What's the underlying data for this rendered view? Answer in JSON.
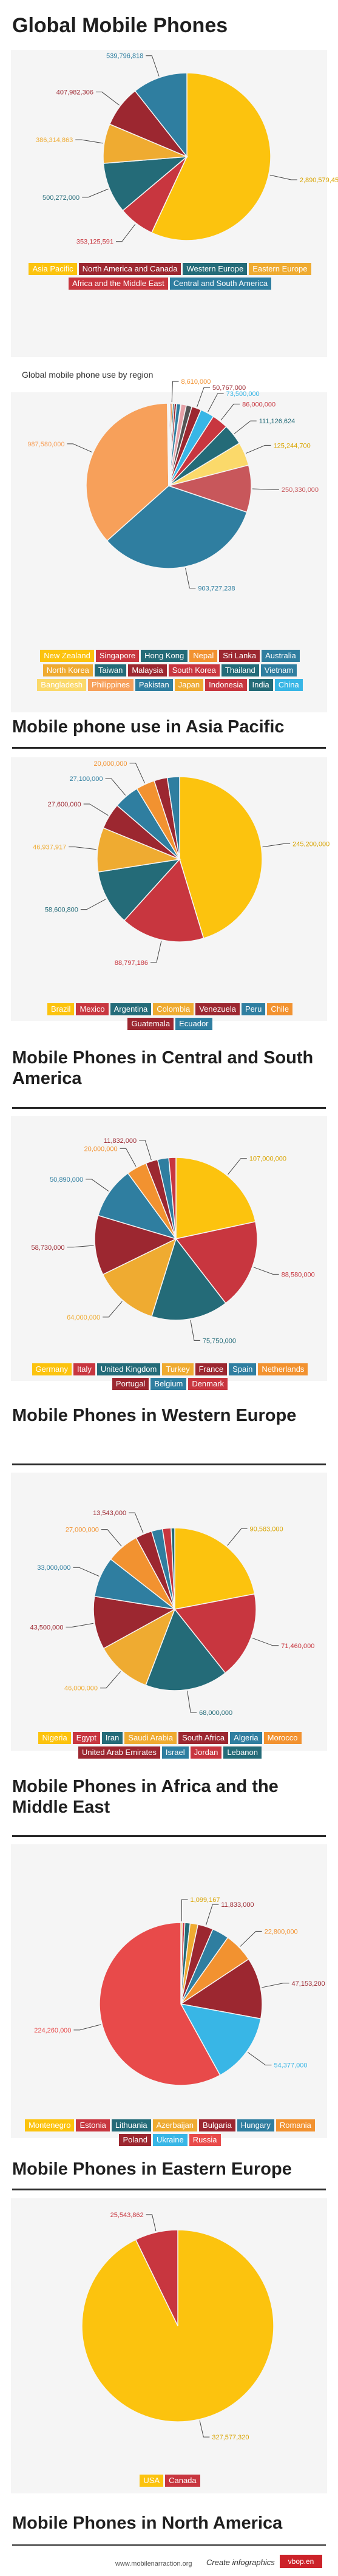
{
  "page": {
    "footer_url": "www.mobilenarraction.org",
    "footer_brand": "Create infographics",
    "footer_badge": "vbop.en"
  },
  "chart_data": [
    {
      "type": "pie",
      "title": "Global Mobile Phones",
      "subtitle": "",
      "series": [
        {
          "name": "Asia Pacific",
          "value": 2890579458,
          "label": "2,890,579,458",
          "color": "#fcc30e"
        },
        {
          "name": "Eastern Europe",
          "value": 353125591,
          "label": "353,125,591",
          "color": "#c8363f"
        },
        {
          "name": "Africa and the Middle East",
          "value": 500272000,
          "label": "500,272,000",
          "color": "#246b78"
        },
        {
          "name": "Western Europe",
          "value": 386314863,
          "label": "386,314,863",
          "color": "#efab31"
        },
        {
          "name": "North America and Canada",
          "value": 407982306,
          "label": "407,982,306",
          "color": "#9c2730"
        },
        {
          "name": "Central and South America",
          "value": 539796818,
          "label": "539,796,818",
          "color": "#2f7ea0"
        }
      ],
      "legend": [
        {
          "label": "Asia Pacific",
          "color": "#fcc30e"
        },
        {
          "label": "North America and Canada",
          "color": "#9c2730"
        },
        {
          "label": "Western Europe",
          "color": "#246b78"
        },
        {
          "label": "Eastern Europe",
          "color": "#efab31"
        },
        {
          "label": "Africa and the Middle East",
          "color": "#c8363f"
        },
        {
          "label": "Central and South America",
          "color": "#2f7ea0"
        }
      ]
    },
    {
      "type": "pie",
      "title": "",
      "subtitle": "Global mobile phone use by region",
      "series": [
        {
          "name": "New Zealand",
          "value": 5000000,
          "label": "",
          "color": "#fcc30e"
        },
        {
          "name": "Singapore",
          "value": 7000000,
          "label": "",
          "color": "#c8363f"
        },
        {
          "name": "Hong Kong",
          "value": 8610000,
          "label": "8,610,000",
          "color": "#f29230"
        },
        {
          "name": "Nepal",
          "value": 9000000,
          "label": "",
          "color": "#246b78"
        },
        {
          "name": "Sri Lanka",
          "value": 12000000,
          "label": "",
          "color": "#9c2730"
        },
        {
          "name": "Australia",
          "value": 22000000,
          "label": "",
          "color": "#2f7ea0"
        },
        {
          "name": "North Korea",
          "value": 2000000,
          "label": "",
          "color": "#efab31"
        },
        {
          "name": "Taiwan",
          "value": 28000000,
          "label": "",
          "color": "#e5a0a6"
        },
        {
          "name": "Malaysia",
          "value": 30000000,
          "label": "",
          "color": "#555555"
        },
        {
          "name": "South Korea",
          "value": 50767000,
          "label": "50,767,000",
          "color": "#9c2730"
        },
        {
          "name": "Thailand",
          "value": 73500000,
          "label": "73,500,000",
          "color": "#38b6e6"
        },
        {
          "name": "Vietnam",
          "value": 86000000,
          "label": "86,000,000",
          "color": "#c8363f"
        },
        {
          "name": "Bangladesh",
          "value": 111126624,
          "label": "111,126,624",
          "color": "#246b78"
        },
        {
          "name": "Philippines",
          "value": 125244700,
          "label": "125,244,700",
          "color": "#fbd96a"
        },
        {
          "name": "Pakistan",
          "value": 250330000,
          "label": "250,330,000",
          "color": "#c8575b"
        },
        {
          "name": "Indonesia",
          "value": 903727238,
          "label": "903,727,238",
          "color": "#2f7ea0"
        },
        {
          "name": "India",
          "value": 987580000,
          "label": "987,580,000",
          "color": "#f7a05a"
        },
        {
          "name": "Japan",
          "value": 4000000,
          "label": "",
          "color": "#efab31"
        },
        {
          "name": "China",
          "value": 3000000,
          "label": "",
          "color": "#2f7ea0"
        }
      ],
      "legend": [
        {
          "label": "New Zealand",
          "color": "#fcc30e"
        },
        {
          "label": "Singapore",
          "color": "#c8363f"
        },
        {
          "label": "Hong Kong",
          "color": "#246b78"
        },
        {
          "label": "Nepal",
          "color": "#f29230"
        },
        {
          "label": "Sri Lanka",
          "color": "#9c2730"
        },
        {
          "label": "Australia",
          "color": "#2f7ea0"
        },
        {
          "label": "North Korea",
          "color": "#efab31"
        },
        {
          "label": "Taiwan",
          "color": "#246b78"
        },
        {
          "label": "Malaysia",
          "color": "#9c2730"
        },
        {
          "label": "South Korea",
          "color": "#c8363f"
        },
        {
          "label": "Thailand",
          "color": "#246b78"
        },
        {
          "label": "Vietnam",
          "color": "#2f7ea0"
        },
        {
          "label": "Bangladesh",
          "color": "#fbd96a"
        },
        {
          "label": "Philippines",
          "color": "#f7a05a"
        },
        {
          "label": "Pakistan",
          "color": "#2f7ea0"
        },
        {
          "label": "Japan",
          "color": "#efab31"
        },
        {
          "label": "Indonesia",
          "color": "#c8363f"
        },
        {
          "label": "India",
          "color": "#246b78"
        },
        {
          "label": "China",
          "color": "#38b6e6"
        }
      ]
    },
    {
      "type": "pie",
      "title": "Mobile phone use in Asia Pacific",
      "subtitle": "",
      "series": [
        {
          "name": "Brazil",
          "value": 245200000,
          "label": "245,200,000",
          "color": "#fcc30e"
        },
        {
          "name": "Mexico",
          "value": 88797186,
          "label": "88,797,186",
          "color": "#c8363f"
        },
        {
          "name": "Argentina",
          "value": 58600800,
          "label": "58,600,800",
          "color": "#246b78"
        },
        {
          "name": "Colombia",
          "value": 46937917,
          "label": "46,937,917",
          "color": "#efab31"
        },
        {
          "name": "Venezuela",
          "value": 27600000,
          "label": "27,600,000",
          "color": "#9c2730"
        },
        {
          "name": "Peru",
          "value": 27100000,
          "label": "27,100,000",
          "color": "#2f7ea0"
        },
        {
          "name": "Chile",
          "value": 20000000,
          "label": "20,000,000",
          "color": "#f29230"
        },
        {
          "name": "Guatemala",
          "value": 14000000,
          "label": "",
          "color": "#9c2730"
        },
        {
          "name": "Ecuador",
          "value": 13000000,
          "label": "",
          "color": "#2f7ea0"
        }
      ],
      "legend": [
        {
          "label": "Brazil",
          "color": "#fcc30e"
        },
        {
          "label": "Mexico",
          "color": "#c8363f"
        },
        {
          "label": "Argentina",
          "color": "#246b78"
        },
        {
          "label": "Colombia",
          "color": "#efab31"
        },
        {
          "label": "Venezuela",
          "color": "#9c2730"
        },
        {
          "label": "Peru",
          "color": "#2f7ea0"
        },
        {
          "label": "Chile",
          "color": "#f29230"
        },
        {
          "label": "Guatemala",
          "color": "#9c2730"
        },
        {
          "label": "Ecuador",
          "color": "#2f7ea0"
        }
      ]
    },
    {
      "type": "pie",
      "title": "Mobile Phones in Central and South America",
      "subtitle": "",
      "series": [
        {
          "name": "Germany",
          "value": 107000000,
          "label": "107,000,000",
          "color": "#fcc30e"
        },
        {
          "name": "Italy",
          "value": 88580000,
          "label": "88,580,000",
          "color": "#c8363f"
        },
        {
          "name": "United Kingdom",
          "value": 75750000,
          "label": "75,750,000",
          "color": "#246b78"
        },
        {
          "name": "Turkey",
          "value": 64000000,
          "label": "64,000,000",
          "color": "#efab31"
        },
        {
          "name": "France",
          "value": 58730000,
          "label": "58,730,000",
          "color": "#9c2730"
        },
        {
          "name": "Spain",
          "value": 50890000,
          "label": "50,890,000",
          "color": "#2f7ea0"
        },
        {
          "name": "Netherlands",
          "value": 20000000,
          "label": "20,000,000",
          "color": "#f29230"
        },
        {
          "name": "Portugal",
          "value": 11832000,
          "label": "11,832,000",
          "color": "#9c2730"
        },
        {
          "name": "Belgium",
          "value": 11000000,
          "label": "",
          "color": "#2f7ea0"
        },
        {
          "name": "Denmark",
          "value": 7000000,
          "label": "",
          "color": "#c8363f"
        }
      ],
      "legend": [
        {
          "label": "Germany",
          "color": "#fcc30e"
        },
        {
          "label": "Italy",
          "color": "#c8363f"
        },
        {
          "label": "United Kingdom",
          "color": "#246b78"
        },
        {
          "label": "Turkey",
          "color": "#efab31"
        },
        {
          "label": "France",
          "color": "#9c2730"
        },
        {
          "label": "Spain",
          "color": "#2f7ea0"
        },
        {
          "label": "Netherlands",
          "color": "#f29230"
        },
        {
          "label": "Portugal",
          "color": "#9c2730"
        },
        {
          "label": "Belgium",
          "color": "#2f7ea0"
        },
        {
          "label": "Denmark",
          "color": "#c8363f"
        }
      ]
    },
    {
      "type": "pie",
      "title": "Mobile Phones in Western Europe",
      "subtitle": "",
      "series": [
        {
          "name": "Nigeria",
          "value": 90583000,
          "label": "90,583,000",
          "color": "#fcc30e"
        },
        {
          "name": "Egypt",
          "value": 71460000,
          "label": "71,460,000",
          "color": "#c8363f"
        },
        {
          "name": "Iran",
          "value": 68000000,
          "label": "68,000,000",
          "color": "#246b78"
        },
        {
          "name": "Saudi Arabia",
          "value": 46000000,
          "label": "46,000,000",
          "color": "#efab31"
        },
        {
          "name": "South Africa",
          "value": 43500000,
          "label": "43,500,000",
          "color": "#9c2730"
        },
        {
          "name": "Algeria",
          "value": 33000000,
          "label": "33,000,000",
          "color": "#2f7ea0"
        },
        {
          "name": "Morocco",
          "value": 27000000,
          "label": "27,000,000",
          "color": "#f29230"
        },
        {
          "name": "United Arab Emirates",
          "value": 13543000,
          "label": "13,543,000",
          "color": "#9c2730"
        },
        {
          "name": "Israel",
          "value": 9000000,
          "label": "",
          "color": "#2f7ea0"
        },
        {
          "name": "Jordan",
          "value": 7000000,
          "label": "",
          "color": "#c8363f"
        },
        {
          "name": "Lebanon",
          "value": 3000000,
          "label": "",
          "color": "#246b78"
        }
      ],
      "legend": [
        {
          "label": "Nigeria",
          "color": "#fcc30e"
        },
        {
          "label": "Egypt",
          "color": "#c8363f"
        },
        {
          "label": "Iran",
          "color": "#246b78"
        },
        {
          "label": "Saudi Arabia",
          "color": "#efab31"
        },
        {
          "label": "South Africa",
          "color": "#9c2730"
        },
        {
          "label": "Algeria",
          "color": "#2f7ea0"
        },
        {
          "label": "Morocco",
          "color": "#f29230"
        },
        {
          "label": "United Arab Emirates",
          "color": "#9c2730"
        },
        {
          "label": "Israel",
          "color": "#2f7ea0"
        },
        {
          "label": "Jordan",
          "color": "#c8363f"
        },
        {
          "label": "Lebanon",
          "color": "#246b78"
        }
      ]
    },
    {
      "type": "pie",
      "title": "Mobile Phones in Africa and the Middle East",
      "subtitle": "",
      "series": [
        {
          "name": "Montenegro",
          "value": 1099167,
          "label": "1,099,167",
          "color": "#fcc30e"
        },
        {
          "name": "Estonia",
          "value": 2000000,
          "label": "",
          "color": "#c8363f"
        },
        {
          "name": "Lithuania",
          "value": 4000000,
          "label": "",
          "color": "#246b78"
        },
        {
          "name": "Azerbaijan",
          "value": 6000000,
          "label": "",
          "color": "#efab31"
        },
        {
          "name": "Bulgaria",
          "value": 11833000,
          "label": "11,833,000",
          "color": "#9c2730"
        },
        {
          "name": "Hungary",
          "value": 13000000,
          "label": "",
          "color": "#2f7ea0"
        },
        {
          "name": "Romania",
          "value": 22800000,
          "label": "22,800,000",
          "color": "#f29230"
        },
        {
          "name": "Poland",
          "value": 47153200,
          "label": "47,153,200",
          "color": "#9c2730"
        },
        {
          "name": "Ukraine",
          "value": 54377000,
          "label": "54,377,000",
          "color": "#38b6e6"
        },
        {
          "name": "Russia",
          "value": 224260000,
          "label": "224,260,000",
          "color": "#e84a4a"
        }
      ],
      "legend": [
        {
          "label": "Montenegro",
          "color": "#fcc30e"
        },
        {
          "label": "Estonia",
          "color": "#c8363f"
        },
        {
          "label": "Lithuania",
          "color": "#246b78"
        },
        {
          "label": "Azerbaijan",
          "color": "#efab31"
        },
        {
          "label": "Bulgaria",
          "color": "#9c2730"
        },
        {
          "label": "Hungary",
          "color": "#2f7ea0"
        },
        {
          "label": "Romania",
          "color": "#f29230"
        },
        {
          "label": "Poland",
          "color": "#9c2730"
        },
        {
          "label": "Ukraine",
          "color": "#38b6e6"
        },
        {
          "label": "Russia",
          "color": "#e84a4a"
        }
      ]
    },
    {
      "type": "pie",
      "title": "Mobile Phones in Eastern Europe",
      "subtitle": "",
      "series": [
        {
          "name": "USA",
          "value": 327577320,
          "label": "327,577,320",
          "color": "#fcc30e"
        },
        {
          "name": "Canada",
          "value": 25543862,
          "label": "25,543,862",
          "color": "#c8363f"
        }
      ],
      "legend": [
        {
          "label": "USA",
          "color": "#fcc30e"
        },
        {
          "label": "Canada",
          "color": "#c8363f"
        }
      ]
    },
    {
      "type": "pie",
      "title": "Mobile Phones in North America",
      "subtitle": "",
      "series": [],
      "legend": []
    }
  ]
}
